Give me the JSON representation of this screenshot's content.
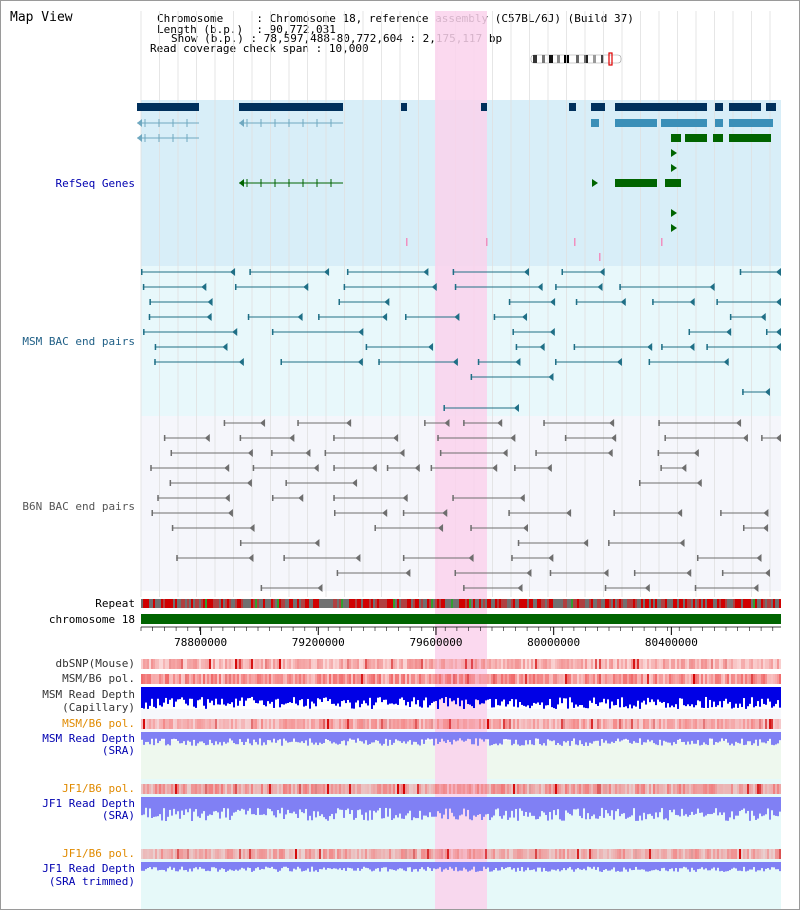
{
  "title": "Map View",
  "info": [
    {
      "key": "Chromosome",
      "value": "Chromosome 18, reference assembly (C57BL/6J) (Build 37)"
    },
    {
      "key": "Length (b.p.)",
      "value": "90,772,031"
    },
    {
      "key": "Show (b.p.)",
      "value": "78,597,488-80,772,604 : 2,175,117 bp"
    },
    {
      "key": "Read coverage check span",
      "value": "10,000"
    }
  ],
  "colors": {
    "refseq_dark": "#00305c",
    "refseq_mid": "#3a8fb8",
    "refseq_light": "#6fa8c0",
    "refseq_green": "#006400",
    "refseq_bg": "#d8eef8",
    "msm_bg": "#e8f8fb",
    "msm_pair": "#1f6f86",
    "b6n_bg": "#f5f6fb",
    "b6n_pair": "#6e6e6e",
    "highlight": "#fad2ec",
    "chrom_bar": "#006400",
    "snp": "#f29090",
    "depth_dark": "#0000e6",
    "depth_light": "#8080f4"
  },
  "tracks": {
    "refseq": "RefSeq Genes",
    "msm_bac": "MSM BAC end pairs",
    "b6n_bac": "B6N BAC end pairs",
    "repeat": "Repeat",
    "chromosome": "chromosome 18",
    "dbsnp": "dbSNP(Mouse)",
    "msm_b6_pol_1": "MSM/B6 pol.",
    "msm_read_depth_cap": [
      "MSM Read Depth",
      "(Capillary)"
    ],
    "msm_b6_pol_2": "MSM/B6 pol.",
    "msm_read_depth_sra": [
      "MSM Read Depth",
      "(SRA)"
    ],
    "jf1_b6_pol_1": "JF1/B6 pol.",
    "jf1_read_depth_sra": [
      "JF1 Read Depth",
      "(SRA)"
    ],
    "jf1_b6_pol_2": "JF1/B6 pol.",
    "jf1_read_depth_trim": [
      "JF1 Read Depth",
      "(SRA trimmed)"
    ]
  },
  "axis": {
    "start": 78597488,
    "end": 80772604,
    "ticks": [
      78800000,
      79200000,
      79600000,
      80000000,
      80400000
    ]
  },
  "highlight_region": [
    79600000,
    79775000
  ],
  "ideogram": {
    "band_marker": "chromosome 18 current view"
  }
}
